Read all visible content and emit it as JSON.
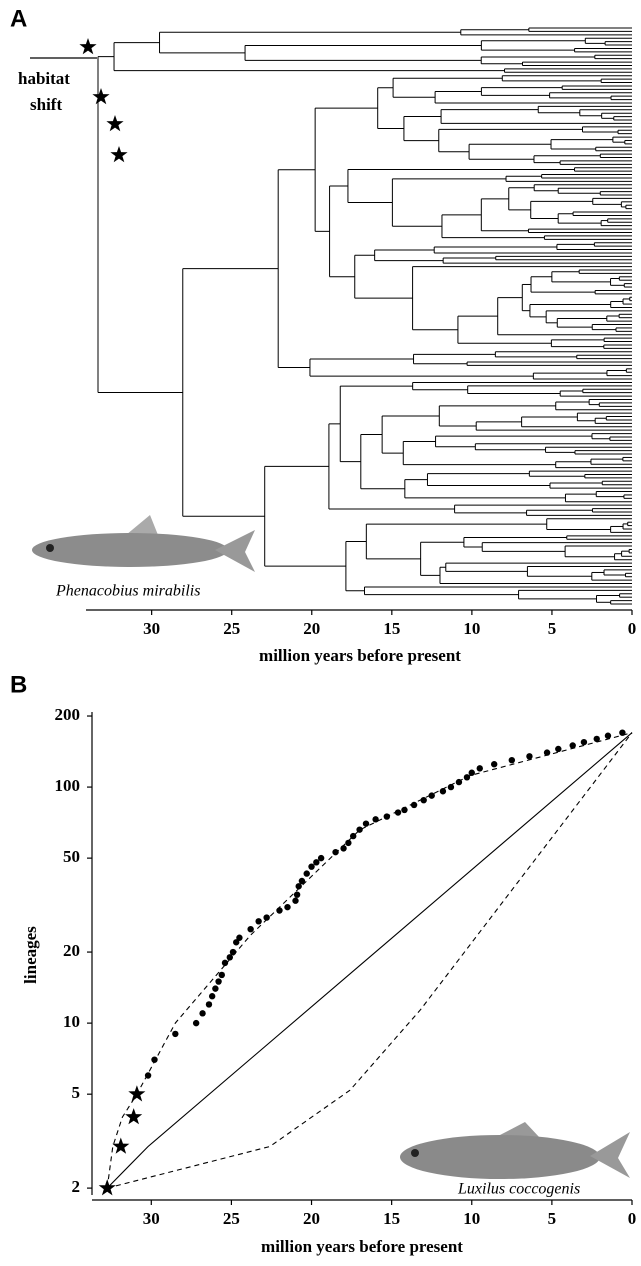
{
  "chart_data": [
    {
      "type": "tree",
      "panel": "A",
      "annotation_lines": [
        "habitat",
        "shift"
      ],
      "caption": "Phenacobius mirabilis",
      "xlabel": "million years before present",
      "xlim": [
        34.1,
        0
      ],
      "xticks": [
        30,
        25,
        20,
        15,
        10,
        5,
        0
      ]
    },
    {
      "type": "scatter",
      "panel": "B",
      "caption": "Luxilus coccogenis",
      "xlabel": "million years before present",
      "ylabel": "lineages",
      "xlim": [
        33.7,
        0
      ],
      "xticks": [
        30,
        25,
        20,
        15,
        10,
        5,
        0
      ],
      "ylim": [
        1.87,
        208
      ],
      "yticks": [
        2,
        5,
        10,
        20,
        50,
        100,
        200
      ],
      "log_y": true,
      "series": [
        {
          "marker": "dot",
          "color": "#000000",
          "x": [
            30.2,
            29.8,
            28.5,
            27.2,
            26.8,
            26.4,
            26.2,
            26.0,
            25.8,
            25.6,
            25.4,
            25.1,
            24.9,
            24.7,
            24.5,
            23.8,
            23.3,
            22.8,
            22.0,
            21.5,
            21.0,
            20.9,
            20.8,
            20.6,
            20.3,
            20.0,
            19.7,
            19.4,
            18.5,
            18.0,
            17.7,
            17.4,
            17.0,
            16.6,
            16.0,
            15.3,
            14.6,
            14.2,
            13.6,
            13.0,
            12.5,
            11.8,
            11.3,
            10.8,
            10.3,
            10.0,
            9.5,
            8.6,
            7.5,
            6.4,
            5.3,
            4.6,
            3.7,
            3.0,
            2.2,
            1.5,
            0.6
          ],
          "values": [
            6,
            7,
            9,
            10,
            11,
            12,
            13,
            14,
            15,
            16,
            18,
            19,
            20,
            22,
            23,
            25,
            27,
            28,
            30,
            31,
            33,
            35,
            38,
            40,
            43,
            46,
            48,
            50,
            53,
            55,
            58,
            62,
            66,
            70,
            73,
            75,
            78,
            80,
            84,
            88,
            92,
            96,
            100,
            105,
            110,
            115,
            120,
            125,
            130,
            135,
            140,
            145,
            150,
            155,
            160,
            165,
            170
          ]
        },
        {
          "marker": "star",
          "color": "#000000",
          "x": [
            32.75,
            31.9,
            31.1,
            30.9
          ],
          "values": [
            2,
            3,
            4,
            5
          ]
        },
        {
          "marker": "line",
          "dash": false,
          "color": "#000000",
          "x": [
            32.75,
            30.2,
            0
          ],
          "values": [
            2,
            3,
            170
          ]
        },
        {
          "marker": "line",
          "dash": true,
          "color": "#000000",
          "x": [
            32.75,
            32.4,
            31.8,
            30.9,
            28.5,
            23.8,
            17.0,
            10.1,
            0
          ],
          "values": [
            2,
            3,
            4,
            5,
            10,
            23.6,
            65.8,
            112,
            170
          ]
        },
        {
          "marker": "line",
          "dash": true,
          "color": "#000000",
          "x": [
            32.75,
            22.6,
            17.6,
            13.2,
            0
          ],
          "values": [
            2,
            3,
            5.2,
            11.4,
            170
          ]
        }
      ]
    }
  ]
}
